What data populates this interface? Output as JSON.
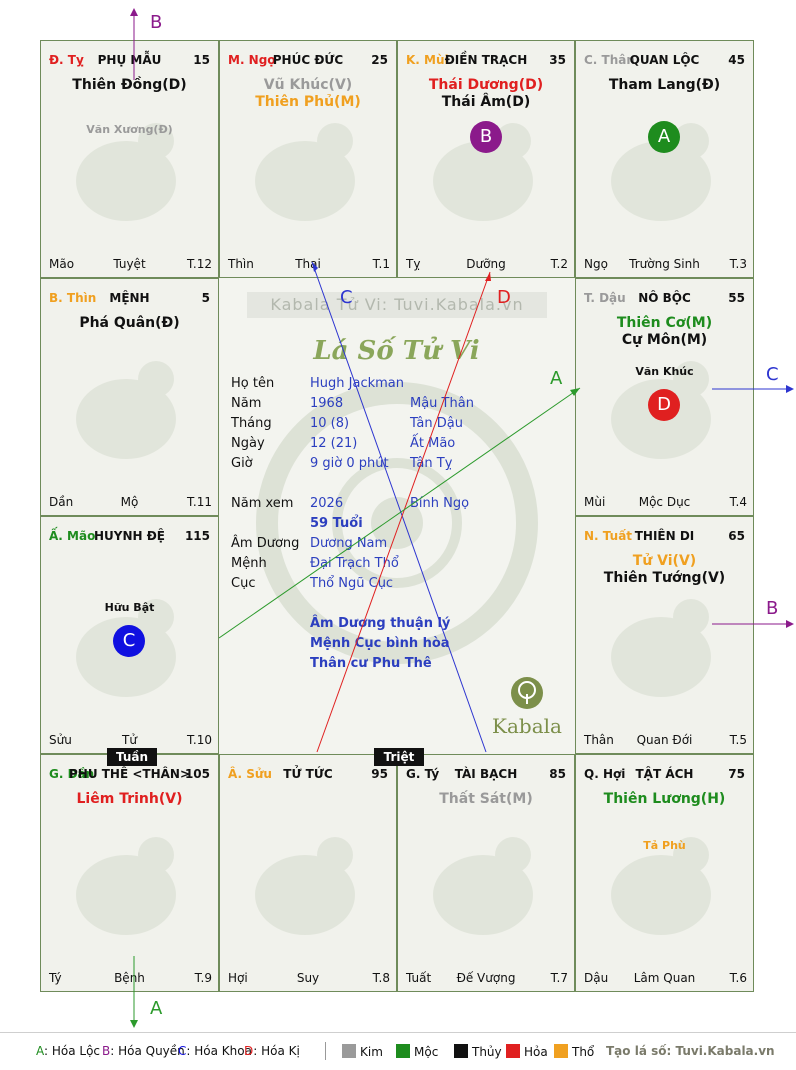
{
  "palaces": [
    {
      "id": "ty",
      "can": "Đ. Tỵ",
      "can_color": "#e02020",
      "name": "PHỤ MẪU",
      "age": "15",
      "stars": [
        {
          "t": "Thiên Đồng(D)",
          "c": "#111"
        }
      ],
      "minors": [
        {
          "t": "Văn Xương(Đ)",
          "c": "#9a9a9a"
        }
      ],
      "foot": {
        "l": "Mão",
        "m": "Tuyệt",
        "r": "T.12"
      }
    },
    {
      "id": "ngo",
      "can": "M. Ngọ",
      "can_color": "#e02020",
      "name": "PHÚC ĐỨC",
      "age": "25",
      "stars": [
        {
          "t": "Vũ Khúc(V)",
          "c": "#9a9a9a"
        },
        {
          "t": "Thiên Phủ(M)",
          "c": "#f0a020"
        }
      ],
      "minors": [],
      "foot": {
        "l": "Thìn",
        "m": "Thai",
        "r": "T.1"
      }
    },
    {
      "id": "mui",
      "can": "K. Mùi",
      "can_color": "#f0a020",
      "name": "ĐIỀN TRẠCH",
      "age": "35",
      "stars": [
        {
          "t": "Thái Dương(D)",
          "c": "#e02020"
        },
        {
          "t": "Thái Âm(D)",
          "c": "#111"
        }
      ],
      "minors": [],
      "foot": {
        "l": "Tỵ",
        "m": "Dưỡng",
        "r": "T.2"
      }
    },
    {
      "id": "than",
      "can": "C. Thân",
      "can_color": "#9a9a9a",
      "name": "QUAN LỘC",
      "age": "45",
      "stars": [
        {
          "t": "Tham Lang(Đ)",
          "c": "#111"
        }
      ],
      "minors": [],
      "foot": {
        "l": "Ngọ",
        "m": "Trường Sinh",
        "r": "T.3"
      }
    },
    {
      "id": "dau",
      "can": "T. Dậu",
      "can_color": "#9a9a9a",
      "name": "NÔ BỘC",
      "age": "55",
      "stars": [
        {
          "t": "Thiên Cơ(M)",
          "c": "#1e8c1e"
        },
        {
          "t": "Cự Môn(M)",
          "c": "#111"
        }
      ],
      "minors": [
        {
          "t": "Văn Khúc",
          "c": "#111"
        }
      ],
      "foot": {
        "l": "Mùi",
        "m": "Mộc Dục",
        "r": "T.4"
      }
    },
    {
      "id": "tuat",
      "can": "N. Tuất",
      "can_color": "#f0a020",
      "name": "THIÊN DI",
      "age": "65",
      "stars": [
        {
          "t": "Tử Vi(V)",
          "c": "#f0a020"
        },
        {
          "t": "Thiên Tướng(V)",
          "c": "#111"
        }
      ],
      "minors": [],
      "foot": {
        "l": "Thân",
        "m": "Quan Đới",
        "r": "T.5"
      }
    },
    {
      "id": "hoi",
      "can": "Q. Hợi",
      "can_color": "#111",
      "name": "TẬT ÁCH",
      "age": "75",
      "stars": [
        {
          "t": "Thiên Lương(H)",
          "c": "#1e8c1e"
        }
      ],
      "minors": [
        {
          "t": "Tả Phù",
          "c": "#f0a020"
        }
      ],
      "foot": {
        "l": "Dậu",
        "m": "Lâm Quan",
        "r": "T.6"
      }
    },
    {
      "id": "ti",
      "can": "G. Tý",
      "can_color": "#111",
      "name": "TÀI BẠCH",
      "age": "85",
      "stars": [
        {
          "t": "Thất Sát(M)",
          "c": "#9a9a9a"
        }
      ],
      "minors": [],
      "foot": {
        "l": "Tuất",
        "m": "Đế Vượng",
        "r": "T.7"
      }
    },
    {
      "id": "suu",
      "can": "Â. Sửu",
      "can_color": "#f0a020",
      "name": "TỬ TỨC",
      "age": "95",
      "stars": [],
      "minors": [],
      "foot": {
        "l": "Hợi",
        "m": "Suy",
        "r": "T.8"
      }
    },
    {
      "id": "dan",
      "can": "G. Dần",
      "can_color": "#1e8c1e",
      "name": "PHU THÊ <THÂN>",
      "age": "105",
      "stars": [
        {
          "t": "Liêm Trinh(V)",
          "c": "#e02020"
        }
      ],
      "minors": [],
      "foot": {
        "l": "Tý",
        "m": "Bệnh",
        "r": "T.9"
      }
    },
    {
      "id": "mao",
      "can": "Ấ. Mão",
      "can_color": "#1e8c1e",
      "name": "HUYNH ĐỆ",
      "age": "115",
      "stars": [],
      "minors": [
        {
          "t": "Hữu Bật",
          "c": "#111"
        }
      ],
      "foot": {
        "l": "Sửu",
        "m": "Tử",
        "r": "T.10"
      }
    },
    {
      "id": "thin",
      "can": "B. Thìn",
      "can_color": "#f0a020",
      "name": "MỆNH",
      "age": "5",
      "stars": [
        {
          "t": "Phá Quân(Đ)",
          "c": "#111"
        }
      ],
      "minors": [],
      "foot": {
        "l": "Dần",
        "m": "Mộ",
        "r": "T.11"
      }
    }
  ],
  "badges": {
    "B": "#8b1a8b",
    "A": "#1e8c1e",
    "D": "#e02020",
    "C": "#1010e0"
  },
  "tags": {
    "tuan": "Tuần",
    "triet": "Triệt"
  },
  "center": {
    "watermark": "Kabala Tử Vi: Tuvi.Kabala.vn",
    "title": "Lá Số Tử Vi",
    "rows": [
      {
        "l": "Họ tên",
        "v": "Hugh Jackman",
        "v2": ""
      },
      {
        "l": "Năm",
        "v": "1968",
        "v2": "Mậu Thân"
      },
      {
        "l": "Tháng",
        "v": "10  (8)",
        "v2": "Tân Dậu"
      },
      {
        "l": "Ngày",
        "v": "12  (21)",
        "v2": "Ất Mão"
      },
      {
        "l": "Giờ",
        "v": "9 giờ 0 phút",
        "v2": "Tân Tỵ"
      }
    ],
    "rows2": [
      {
        "l": "Năm xem",
        "v": "2026",
        "v2": "Bính Ngọ"
      },
      {
        "l": "",
        "v": "59 Tuổi",
        "v2": ""
      },
      {
        "l": "Âm Dương",
        "v": "Dương Nam",
        "v2": ""
      },
      {
        "l": "Mệnh",
        "v": "Đại Trạch Thổ",
        "v2": ""
      },
      {
        "l": "Cục",
        "v": "Thổ Ngũ Cục",
        "v2": ""
      }
    ],
    "notes": [
      "Âm Dương thuận lý",
      "Mệnh Cục bình hòa",
      "Thân cư Phu Thê"
    ],
    "brand": "Kabala"
  },
  "arrow_labels": {
    "a": "A",
    "b": "B",
    "c": "C",
    "d": "D"
  },
  "legend": {
    "transforms": [
      {
        "k": "A",
        "t": "Hóa Lộc",
        "c": "#1e8c1e"
      },
      {
        "k": "B",
        "t": "Hóa Quyền",
        "c": "#8b1a8b"
      },
      {
        "k": "C",
        "t": "Hóa Khoa",
        "c": "#1010e0"
      },
      {
        "k": "D",
        "t": "Hóa Kị",
        "c": "#e02020"
      }
    ],
    "elements": [
      {
        "t": "Kim",
        "c": "#9a9a9a"
      },
      {
        "t": "Mộc",
        "c": "#1e8c1e"
      },
      {
        "t": "Thủy",
        "c": "#111111"
      },
      {
        "t": "Hỏa",
        "c": "#e02020"
      },
      {
        "t": "Thổ",
        "c": "#f0a020"
      }
    ],
    "site": "Tạo lá số: Tuvi.Kabala.vn"
  }
}
